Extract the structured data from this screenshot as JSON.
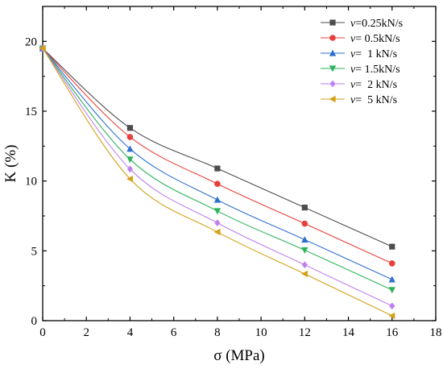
{
  "chart_data": {
    "type": "line",
    "title": "",
    "xlabel": "σ (MPa)",
    "ylabel": "K (%)",
    "xlim": [
      0,
      18
    ],
    "ylim": [
      0,
      22.5
    ],
    "xticks": [
      0,
      2,
      4,
      6,
      8,
      10,
      12,
      14,
      16,
      18
    ],
    "yticks": [
      0,
      5,
      10,
      15,
      20
    ],
    "grid": false,
    "legend_position": "top-right",
    "x": [
      0,
      4,
      8,
      12,
      16
    ],
    "series": [
      {
        "name": "0.25kN/s",
        "legend_prefix": "v",
        "legend_sep": "=",
        "marker": "square",
        "color": "#4d4d4d",
        "values": [
          19.5,
          13.8,
          10.9,
          8.1,
          5.3
        ]
      },
      {
        "name": "0.5kN/s",
        "legend_prefix": "v",
        "legend_sep": "= ",
        "marker": "circle",
        "color": "#e8403a",
        "values": [
          19.5,
          13.15,
          9.8,
          6.95,
          4.1
        ]
      },
      {
        "name": "1 kN/s",
        "legend_prefix": "v",
        "legend_sep": "=  ",
        "marker": "triangle-up",
        "color": "#2d6fd0",
        "values": [
          19.5,
          12.3,
          8.65,
          5.8,
          2.95
        ]
      },
      {
        "name": "1.5kN/s",
        "legend_prefix": "v",
        "legend_sep": "= ",
        "marker": "triangle-down",
        "color": "#2db35a",
        "values": [
          19.5,
          11.55,
          7.85,
          5.05,
          2.2
        ]
      },
      {
        "name": "2 kN/s",
        "legend_prefix": "v",
        "legend_sep": "=  ",
        "marker": "diamond",
        "color": "#c080f0",
        "values": [
          19.5,
          10.85,
          7.0,
          4.0,
          1.05
        ]
      },
      {
        "name": "5 kN/s",
        "legend_prefix": "v",
        "legend_sep": "=  ",
        "marker": "triangle-left",
        "color": "#d4a017",
        "values": [
          19.5,
          10.15,
          6.35,
          3.35,
          0.35
        ]
      }
    ]
  }
}
